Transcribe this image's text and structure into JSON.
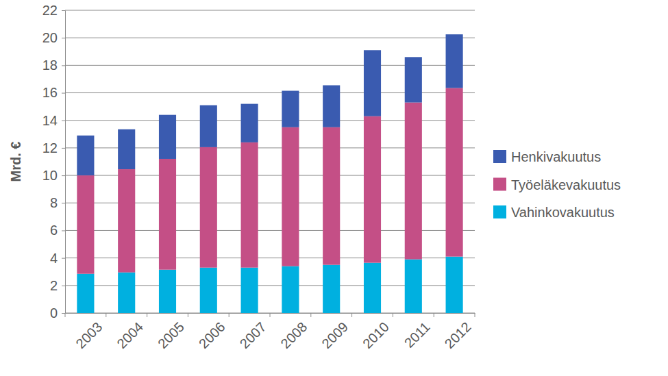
{
  "chart_data": {
    "type": "bar",
    "stacked": true,
    "grid": true,
    "legend": "right",
    "y_label": "Mrd. €",
    "categories": [
      "2003",
      "2004",
      "2005",
      "2006",
      "2007",
      "2008",
      "2009",
      "2010",
      "2011",
      "2012"
    ],
    "series": [
      {
        "name": "Vahinkovakuutus",
        "color": "#00b0e0",
        "values": [
          2.85,
          2.95,
          3.15,
          3.3,
          3.3,
          3.4,
          3.5,
          3.65,
          3.9,
          4.1
        ]
      },
      {
        "name": "Työeläkevakuutus",
        "color": "#c44f86",
        "values": [
          7.15,
          7.5,
          8.05,
          8.75,
          9.1,
          10.1,
          10.0,
          10.65,
          11.4,
          12.25
        ]
      },
      {
        "name": "Henkivakuutus",
        "color": "#3a5bb0",
        "values": [
          2.9,
          2.9,
          3.2,
          3.05,
          2.8,
          2.65,
          3.05,
          4.8,
          3.3,
          3.9
        ]
      }
    ],
    "ylim": [
      0,
      22
    ],
    "yticks": [
      0,
      2,
      4,
      6,
      8,
      10,
      12,
      14,
      16,
      18,
      20,
      22
    ]
  }
}
